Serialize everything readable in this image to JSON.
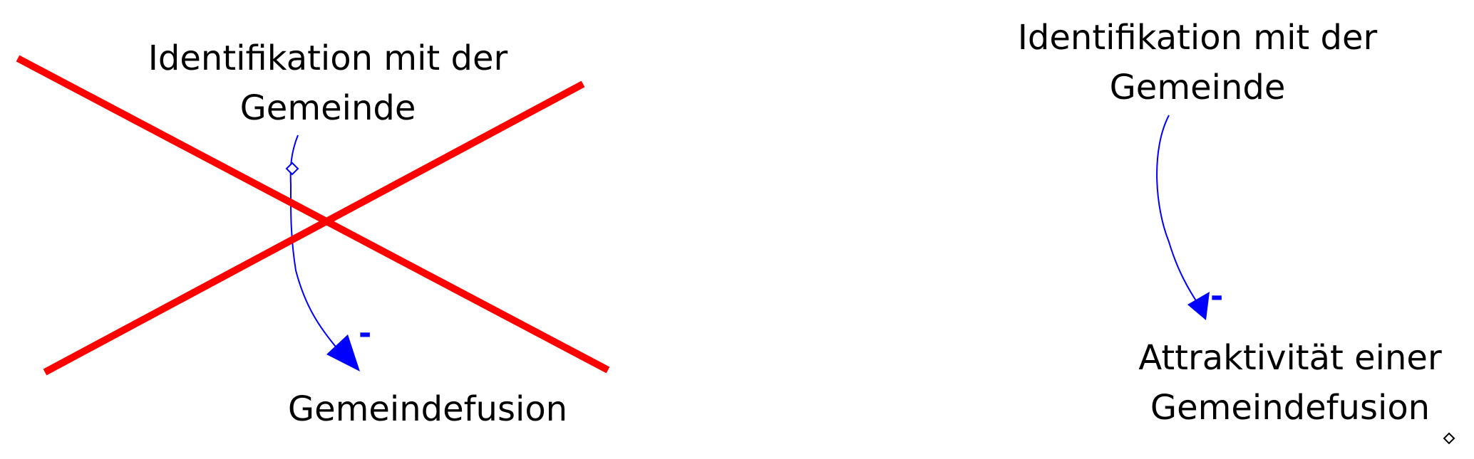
{
  "colors": {
    "link": "#0000ff",
    "cross": "#ff0000",
    "text": "#000000",
    "background": "#ffffff"
  },
  "left_diagram": {
    "status": "rejected",
    "cause": {
      "line1": "Identifikation mit der",
      "line2": "Gemeinde"
    },
    "effect": {
      "line1": "Gemeindefusion"
    },
    "polarity": "-"
  },
  "right_diagram": {
    "status": "accepted",
    "cause": {
      "line1": "Identifikation mit der",
      "line2": "Gemeinde"
    },
    "effect": {
      "line1": "Attraktivität einer",
      "line2": "Gemeindefusion"
    },
    "polarity": "-"
  }
}
